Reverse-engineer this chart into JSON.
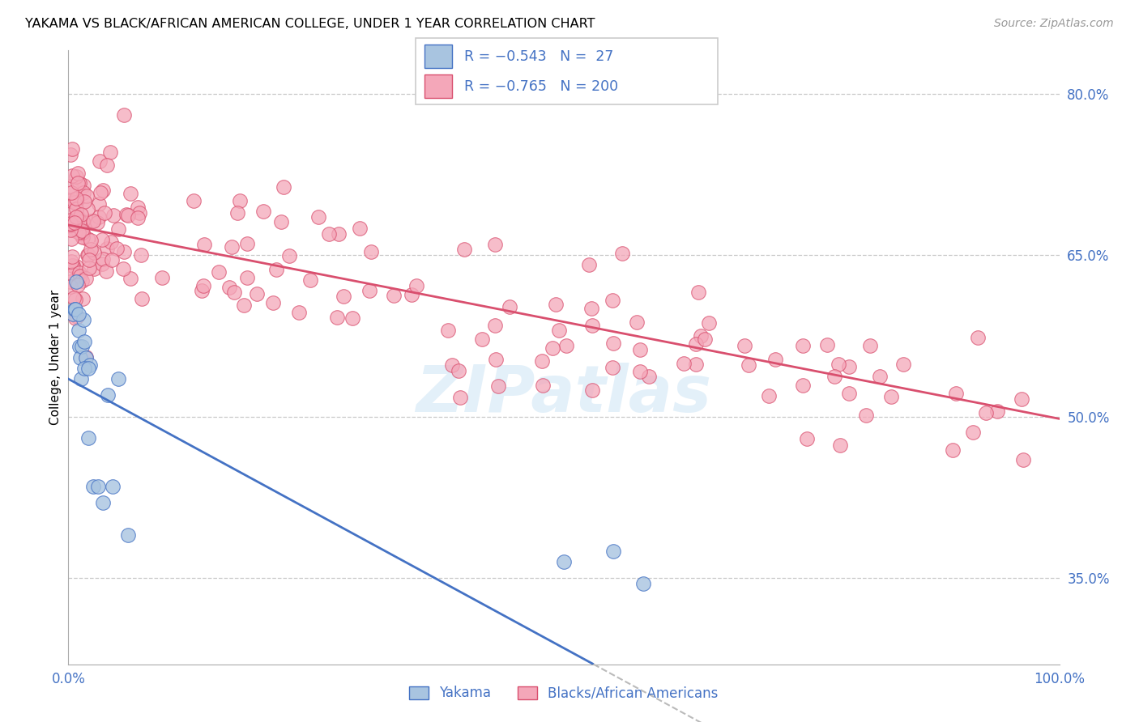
{
  "title": "YAKAMA VS BLACK/AFRICAN AMERICAN COLLEGE, UNDER 1 YEAR CORRELATION CHART",
  "source": "Source: ZipAtlas.com",
  "ylabel": "College, Under 1 year",
  "xlim": [
    0.0,
    1.0
  ],
  "ylim": [
    0.27,
    0.84
  ],
  "yticks": [
    0.35,
    0.5,
    0.65,
    0.8
  ],
  "ytick_labels": [
    "35.0%",
    "50.0%",
    "65.0%",
    "80.0%"
  ],
  "color_yakama": "#a8c4e0",
  "color_yakama_line": "#4472c4",
  "color_pink": "#f4a7b9",
  "color_pink_line": "#d94f6e",
  "color_legend_text": "#4472c4",
  "color_axis_labels": "#4472c4",
  "watermark": "ZIPatlas",
  "background_color": "#ffffff",
  "grid_color": "#c8c8c8",
  "blue_line_x0": 0.0,
  "blue_line_y0": 0.535,
  "blue_line_x1": 0.5,
  "blue_line_y1": 0.285,
  "pink_line_x0": 0.0,
  "pink_line_y0": 0.678,
  "pink_line_x1": 1.0,
  "pink_line_y1": 0.498
}
